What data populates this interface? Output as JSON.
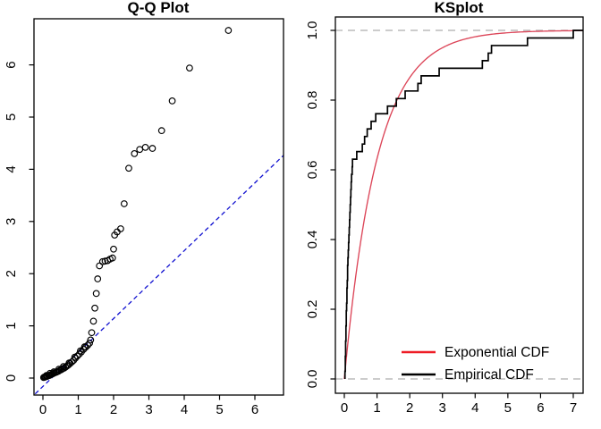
{
  "figure": {
    "background": "#ffffff",
    "panel_count": 2
  },
  "colors": {
    "axis": "#000000",
    "qq_line_blue": "#1010d0",
    "exp_cdf_red": "#dc4558",
    "legend_red": "#ee1c25",
    "ecdf_black": "#000000",
    "ref_dash_gray": "#bcbcbc"
  },
  "chart_data": [
    {
      "type": "scatter",
      "title": "Q-Q Plot",
      "xlabel": "",
      "ylabel": "",
      "x_ticks": [
        0,
        1,
        2,
        3,
        4,
        5,
        6
      ],
      "y_ticks": [
        0,
        1,
        2,
        3,
        4,
        5,
        6
      ],
      "x_range": [
        -0.26,
        6.81
      ],
      "y_range": [
        -0.31,
        6.88
      ],
      "grid": false,
      "marker": "open-circle",
      "reference_line": {
        "slope": 0.65,
        "intercept": -0.16,
        "color": "#1010d0",
        "style": "dashed",
        "x_from": -0.22,
        "x_to": 6.81
      },
      "points": [
        [
          0.02,
          0.01
        ],
        [
          0.04,
          0.02
        ],
        [
          0.06,
          0.02
        ],
        [
          0.08,
          0.03
        ],
        [
          0.11,
          0.03
        ],
        [
          0.13,
          0.04
        ],
        [
          0.16,
          0.05
        ],
        [
          0.18,
          0.05
        ],
        [
          0.21,
          0.06
        ],
        [
          0.24,
          0.07
        ],
        [
          0.27,
          0.08
        ],
        [
          0.3,
          0.09
        ],
        [
          0.33,
          0.1
        ],
        [
          0.37,
          0.11
        ],
        [
          0.4,
          0.12
        ],
        [
          0.44,
          0.13
        ],
        [
          0.48,
          0.15
        ],
        [
          0.52,
          0.16
        ],
        [
          0.56,
          0.18
        ],
        [
          0.6,
          0.19
        ],
        [
          0.64,
          0.21
        ],
        [
          0.68,
          0.23
        ],
        [
          0.72,
          0.25
        ],
        [
          0.77,
          0.28
        ],
        [
          0.82,
          0.31
        ],
        [
          0.87,
          0.34
        ],
        [
          0.92,
          0.38
        ],
        [
          0.97,
          0.42
        ],
        [
          1.03,
          0.46
        ],
        [
          1.09,
          0.5
        ],
        [
          1.15,
          0.55
        ],
        [
          1.21,
          0.59
        ],
        [
          1.27,
          0.63
        ],
        [
          1.32,
          0.67
        ],
        [
          0.1,
          0.05
        ],
        [
          0.2,
          0.09
        ],
        [
          0.31,
          0.12
        ],
        [
          0.45,
          0.17
        ],
        [
          0.58,
          0.22
        ],
        [
          0.74,
          0.29
        ],
        [
          0.9,
          0.4
        ],
        [
          1.06,
          0.52
        ],
        [
          1.18,
          0.6
        ],
        [
          1.35,
          0.73
        ],
        [
          1.38,
          0.87
        ],
        [
          1.43,
          1.09
        ],
        [
          1.47,
          1.34
        ],
        [
          1.51,
          1.62
        ],
        [
          1.55,
          1.9
        ],
        [
          1.6,
          2.15
        ],
        [
          1.69,
          2.23
        ],
        [
          1.76,
          2.24
        ],
        [
          1.83,
          2.25
        ],
        [
          1.9,
          2.28
        ],
        [
          1.97,
          2.3
        ],
        [
          2.0,
          2.47
        ],
        [
          2.03,
          2.74
        ],
        [
          2.1,
          2.8
        ],
        [
          2.2,
          2.86
        ],
        [
          2.3,
          3.34
        ],
        [
          2.43,
          4.02
        ],
        [
          2.59,
          4.3
        ],
        [
          2.74,
          4.38
        ],
        [
          2.9,
          4.42
        ],
        [
          3.1,
          4.4
        ],
        [
          3.36,
          4.74
        ],
        [
          3.66,
          5.31
        ],
        [
          4.15,
          5.94
        ],
        [
          5.25,
          6.66
        ]
      ]
    },
    {
      "type": "line",
      "title": "KSplot",
      "xlabel": "",
      "ylabel": "",
      "x_ticks": [
        0,
        1,
        2,
        3,
        4,
        5,
        6,
        7
      ],
      "y_tick_labels": [
        "0.0",
        "0.2",
        "0.4",
        "0.6",
        "0.8",
        "1.0"
      ],
      "y_tick_values": [
        0.0,
        0.2,
        0.4,
        0.6,
        0.8,
        1.0
      ],
      "x_range": [
        -0.28,
        7.3
      ],
      "y_range": [
        -0.04,
        1.04
      ],
      "grid": false,
      "reference_lines": [
        {
          "y": 0.0,
          "style": "dashed"
        },
        {
          "y": 1.0,
          "style": "dashed"
        }
      ],
      "exponential_rate": 1.0,
      "ecdf_sample_sorted": [
        0.02,
        0.03,
        0.03,
        0.04,
        0.04,
        0.05,
        0.05,
        0.06,
        0.06,
        0.07,
        0.08,
        0.08,
        0.09,
        0.1,
        0.1,
        0.11,
        0.12,
        0.13,
        0.14,
        0.15,
        0.16,
        0.17,
        0.18,
        0.19,
        0.2,
        0.21,
        0.22,
        0.24,
        0.25,
        0.38,
        0.55,
        0.62,
        0.7,
        0.82,
        0.96,
        1.32,
        1.59,
        1.86,
        2.25,
        2.35,
        2.9,
        4.22,
        4.4,
        4.5,
        5.6,
        7.0
      ],
      "legend": {
        "position": "bottom-right",
        "items": [
          {
            "label": "Exponential CDF",
            "color": "#ee1c25"
          },
          {
            "label": "Empirical CDF",
            "color": "#000000"
          }
        ]
      }
    }
  ]
}
